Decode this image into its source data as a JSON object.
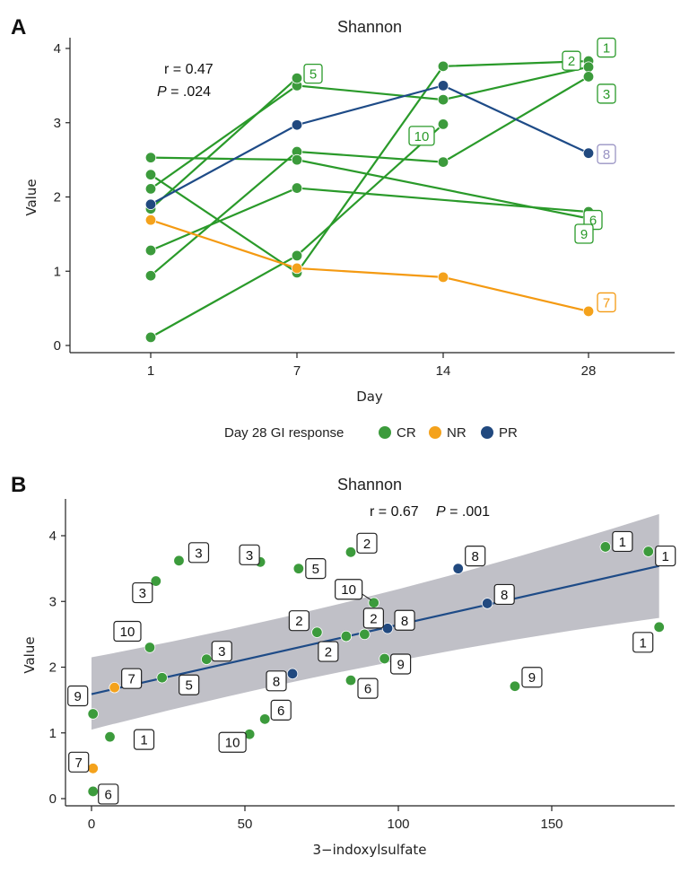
{
  "colors": {
    "CR": "#3c9b3c",
    "NR": "#f4a21c",
    "PR": "#21497f",
    "CR_line": "#2a9a2a",
    "NR_line": "#f49a12",
    "PR_line": "#1e4b87",
    "PR_label": "#9a94c4",
    "ribbon": "#bdbdc4",
    "fit": "#1e4b87"
  },
  "legend": {
    "title": "Day 28 GI response",
    "items": [
      {
        "key": "CR",
        "label": "CR"
      },
      {
        "key": "NR",
        "label": "NR"
      },
      {
        "key": "PR",
        "label": "PR"
      }
    ]
  },
  "chart_data": [
    {
      "panel": "A",
      "type": "line",
      "title": "Shannon",
      "xlabel": "Day",
      "ylabel": "Value",
      "stats": {
        "r": "r = 0.47",
        "p_label": "P",
        "p_value": " = .024"
      },
      "x_categories": [
        "1",
        "7",
        "14",
        "28"
      ],
      "ylim": [
        -0.1,
        4.1
      ],
      "yticks": [
        0,
        1,
        2,
        3,
        4
      ],
      "series": [
        {
          "patient": "1",
          "group": "CR",
          "points": [
            [
              1,
              2.3
            ],
            [
              7,
              0.98
            ],
            [
              14,
              3.76
            ],
            [
              28,
              3.83
            ]
          ]
        },
        {
          "patient": "2",
          "group": "CR",
          "points": [
            [
              1,
              2.11
            ],
            [
              7,
              3.5
            ],
            [
              14,
              3.31
            ],
            [
              28,
              3.75
            ]
          ]
        },
        {
          "patient": "3",
          "group": "CR",
          "points": [
            [
              1,
              0.94
            ],
            [
              7,
              2.61
            ],
            [
              14,
              2.47
            ],
            [
              28,
              3.62
            ]
          ]
        },
        {
          "patient": "5",
          "group": "CR",
          "points": [
            [
              1,
              1.84
            ],
            [
              7,
              3.6
            ]
          ]
        },
        {
          "patient": "6",
          "group": "CR",
          "points": [
            [
              1,
              1.28
            ],
            [
              7,
              2.12
            ],
            [
              28,
              1.8
            ]
          ]
        },
        {
          "patient": "9",
          "group": "CR",
          "points": [
            [
              1,
              2.53
            ],
            [
              7,
              2.5
            ],
            [
              28,
              1.71
            ]
          ]
        },
        {
          "patient": "10",
          "group": "CR",
          "points": [
            [
              1,
              0.11
            ],
            [
              7,
              1.21
            ],
            [
              14,
              2.98
            ]
          ]
        },
        {
          "patient": "8",
          "group": "PR",
          "points": [
            [
              1,
              1.9
            ],
            [
              7,
              2.97
            ],
            [
              14,
              3.5
            ],
            [
              28,
              2.59
            ]
          ]
        },
        {
          "patient": "7",
          "group": "NR",
          "points": [
            [
              1,
              1.69
            ],
            [
              7,
              1.04
            ],
            [
              14,
              0.92
            ],
            [
              28,
              0.46
            ]
          ]
        }
      ],
      "labels": [
        {
          "text": "1",
          "group": "CR",
          "at": [
            28,
            3.83
          ]
        },
        {
          "text": "2",
          "group": "CR",
          "at": [
            28,
            3.75
          ]
        },
        {
          "text": "3",
          "group": "CR",
          "at": [
            28,
            3.62
          ]
        },
        {
          "text": "5",
          "group": "CR",
          "at": [
            7,
            3.6
          ]
        },
        {
          "text": "10",
          "group": "CR",
          "at": [
            14,
            2.98
          ]
        },
        {
          "text": "8",
          "group": "PR",
          "at": [
            28,
            2.59
          ]
        },
        {
          "text": "6",
          "group": "CR",
          "at": [
            28,
            1.8
          ]
        },
        {
          "text": "9",
          "group": "CR",
          "at": [
            28,
            1.71
          ]
        },
        {
          "text": "7",
          "group": "NR",
          "at": [
            28,
            0.46
          ]
        }
      ]
    },
    {
      "panel": "B",
      "type": "scatter",
      "title": "Shannon",
      "xlabel": "3−indoxylsulfate",
      "ylabel": "Value",
      "stats": {
        "r": "r = 0.67",
        "p_label": "P",
        "p_value": " = .001"
      },
      "xlim": [
        -8,
        192
      ],
      "ylim": [
        -0.1,
        4.4
      ],
      "xticks": [
        0,
        50,
        100,
        150
      ],
      "yticks": [
        0,
        1,
        2,
        3,
        4
      ],
      "fit": {
        "x": [
          0,
          185
        ],
        "y": [
          1.59,
          3.54
        ],
        "ci_lower": [
          1.05,
          2.75
        ],
        "ci_upper": [
          2.15,
          4.33
        ],
        "ci_mid_x": 92,
        "ci_mid_lower": 2.28,
        "ci_mid_upper": 2.83
      },
      "points": [
        {
          "x": 0.5,
          "y": 1.29,
          "group": "CR",
          "label": "9"
        },
        {
          "x": 6,
          "y": 0.94,
          "group": "CR",
          "label": "1"
        },
        {
          "x": 0.5,
          "y": 0.46,
          "group": "NR",
          "label": "7"
        },
        {
          "x": 0.5,
          "y": 0.11,
          "group": "CR",
          "label": "6"
        },
        {
          "x": 7.5,
          "y": 1.69,
          "group": "NR",
          "label": "7"
        },
        {
          "x": 19,
          "y": 2.3,
          "group": "CR",
          "label": "10"
        },
        {
          "x": 21,
          "y": 3.31,
          "group": "CR",
          "label": "3"
        },
        {
          "x": 23,
          "y": 1.84,
          "group": "CR",
          "label": "5"
        },
        {
          "x": 28.5,
          "y": 3.62,
          "group": "CR",
          "label": "3"
        },
        {
          "x": 37.5,
          "y": 2.12,
          "group": "CR",
          "label": "3"
        },
        {
          "x": 51.5,
          "y": 0.98,
          "group": "CR",
          "label": "10"
        },
        {
          "x": 55,
          "y": 3.6,
          "group": "CR",
          "label": "3"
        },
        {
          "x": 56.5,
          "y": 1.21,
          "group": "CR",
          "label": "6"
        },
        {
          "x": 65.5,
          "y": 1.9,
          "group": "PR",
          "label": "8"
        },
        {
          "x": 67.5,
          "y": 3.5,
          "group": "CR",
          "label": "5"
        },
        {
          "x": 73.5,
          "y": 2.53,
          "group": "CR",
          "label": "2"
        },
        {
          "x": 83,
          "y": 2.47,
          "group": "CR",
          "label": "2"
        },
        {
          "x": 84.5,
          "y": 1.8,
          "group": "CR",
          "label": "6"
        },
        {
          "x": 84.5,
          "y": 3.75,
          "group": "CR",
          "label": "2"
        },
        {
          "x": 89,
          "y": 2.5,
          "group": "CR",
          "label": "2"
        },
        {
          "x": 92,
          "y": 2.98,
          "group": "CR",
          "label": "10"
        },
        {
          "x": 96.5,
          "y": 2.59,
          "group": "PR",
          "label": "8"
        },
        {
          "x": 95.5,
          "y": 2.13,
          "group": "CR",
          "label": "9"
        },
        {
          "x": 119.5,
          "y": 3.5,
          "group": "PR",
          "label": "8"
        },
        {
          "x": 129,
          "y": 2.97,
          "group": "PR",
          "label": "8"
        },
        {
          "x": 138,
          "y": 1.71,
          "group": "CR",
          "label": "9"
        },
        {
          "x": 167.5,
          "y": 3.83,
          "group": "CR",
          "label": "1"
        },
        {
          "x": 181.5,
          "y": 3.76,
          "group": "CR",
          "label": "1"
        },
        {
          "x": 185,
          "y": 2.61,
          "group": "CR",
          "label": "1"
        }
      ]
    }
  ]
}
